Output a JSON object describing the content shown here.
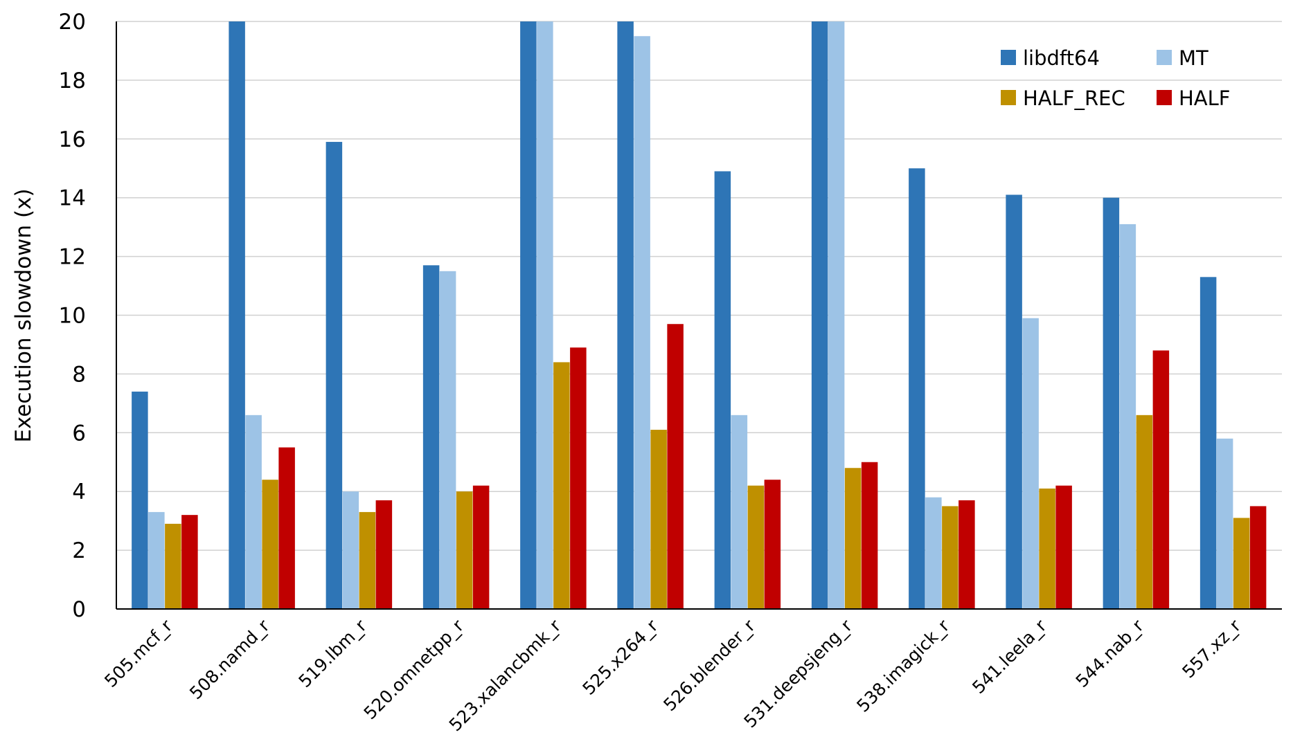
{
  "chart_data": {
    "type": "bar",
    "title": "",
    "xlabel": "",
    "ylabel": "Execution slowdown (x)",
    "ylim": [
      0,
      20
    ],
    "yticks": [
      "0",
      "2",
      "4",
      "6",
      "8",
      "10",
      "12",
      "14",
      "16",
      "18",
      "20"
    ],
    "grid": true,
    "legend_position": "top-right",
    "categories": [
      "505.mcf_r",
      "508.namd_r",
      "519.lbm_r",
      "520.omnetpp_r",
      "523.xalancbmk_r",
      "525.x264_r",
      "526.blender_r",
      "531.deepsjeng_r",
      "538.imagick_r",
      "541.leela_r",
      "544.nab_r",
      "557.xz_r"
    ],
    "series": [
      {
        "name": "libdft64",
        "color": "#2E75B6",
        "values": [
          7.4,
          20,
          15.9,
          11.7,
          20,
          20,
          14.9,
          20,
          15.0,
          14.1,
          14.0,
          11.3
        ]
      },
      {
        "name": "MT",
        "color": "#9DC3E6",
        "values": [
          3.3,
          6.6,
          4.0,
          11.5,
          20,
          19.5,
          6.6,
          20,
          3.8,
          9.9,
          13.1,
          5.8
        ]
      },
      {
        "name": "HALF_REC",
        "color": "#BF9000",
        "values": [
          2.9,
          4.4,
          3.3,
          4.0,
          8.4,
          6.1,
          4.2,
          4.8,
          3.5,
          4.1,
          6.6,
          3.1
        ]
      },
      {
        "name": "HALF",
        "color": "#C00000",
        "values": [
          3.2,
          5.5,
          3.7,
          4.2,
          8.9,
          9.7,
          4.4,
          5.0,
          3.7,
          4.2,
          8.8,
          3.5
        ]
      }
    ]
  }
}
